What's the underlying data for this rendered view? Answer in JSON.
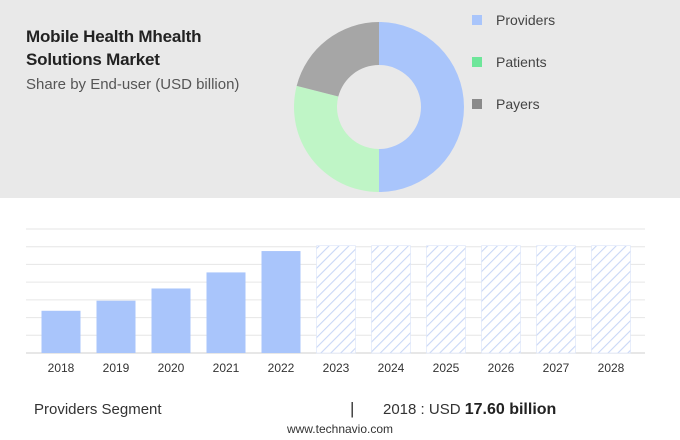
{
  "header": {
    "title": "Mobile Health Mhealth Solutions Market",
    "subtitle": "Share by End-user (USD billion)"
  },
  "legend": [
    {
      "label": "Providers",
      "color": "#a9c5fb"
    },
    {
      "label": "Patients",
      "color": "#6ee69a"
    },
    {
      "label": "Payers",
      "color": "#8a8a8a"
    }
  ],
  "chart_data": [
    {
      "type": "pie",
      "subtype": "donut",
      "categories": [
        "Providers",
        "Patients",
        "Payers"
      ],
      "values": [
        50,
        29,
        21
      ],
      "colors": [
        "#a9c5fb",
        "#bff5c6",
        "#a6a6a6"
      ]
    },
    {
      "type": "bar",
      "categories": [
        "2018",
        "2019",
        "2020",
        "2021",
        "2022",
        "2023",
        "2024",
        "2025",
        "2026",
        "2027",
        "2028"
      ],
      "values": [
        17.6,
        21.8,
        26.9,
        33.6,
        42.5,
        null,
        null,
        null,
        null,
        null,
        null
      ],
      "forecast_categories": [
        "2023",
        "2024",
        "2025",
        "2026",
        "2027",
        "2028"
      ],
      "ylim": [
        0,
        51.7
      ],
      "grid": true,
      "bar_color": "#a9c5fb",
      "forecast_color": "#c9d7f6"
    }
  ],
  "footer": {
    "segment_label": "Providers Segment",
    "separator": "|",
    "value_prefix": "2018 : USD",
    "value": "17.60 billion",
    "site": "www.technavio.com"
  }
}
